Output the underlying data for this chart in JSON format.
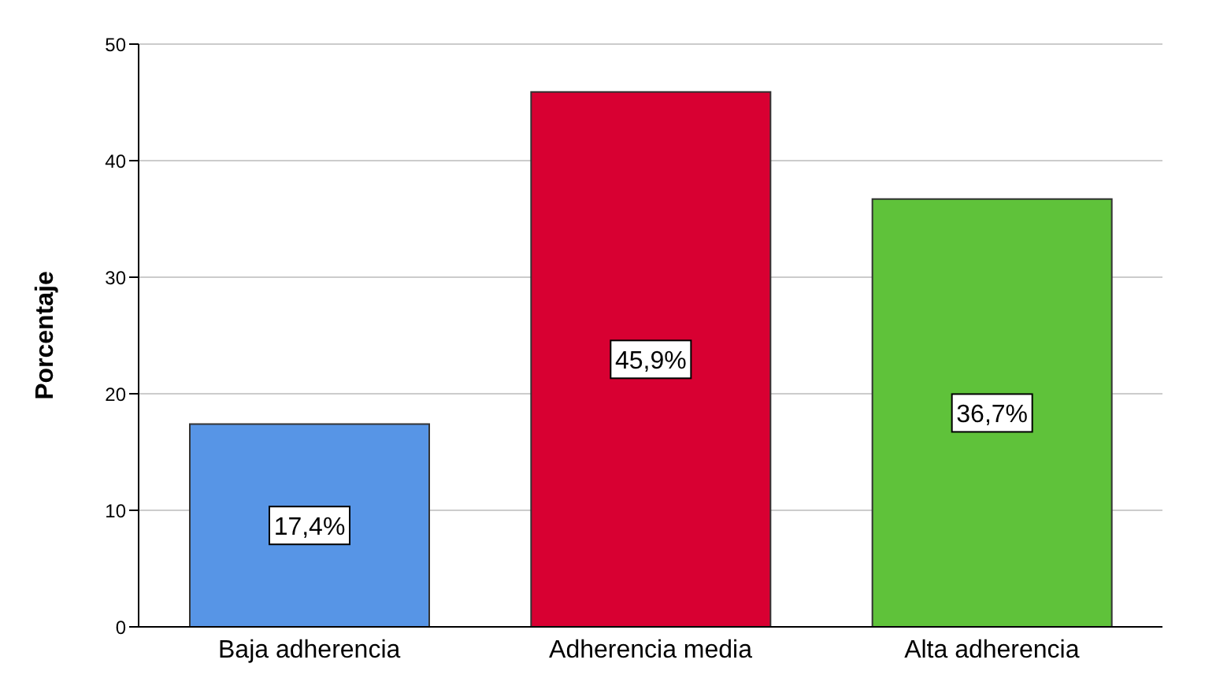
{
  "chart_data": {
    "type": "bar",
    "ylabel": "Porcentaje",
    "categories": [
      "Baja adherencia",
      "Adherencia media",
      "Alta adherencia"
    ],
    "values": [
      17.4,
      45.9,
      36.7
    ],
    "colors": [
      "#5795e6",
      "#d80032",
      "#5fc23a"
    ],
    "value_labels": [
      "17,4%",
      "45,9%",
      "36,7%"
    ],
    "ylim": [
      0,
      50
    ],
    "yticks": [
      0,
      10,
      20,
      30,
      40,
      50
    ],
    "grid": "y"
  }
}
